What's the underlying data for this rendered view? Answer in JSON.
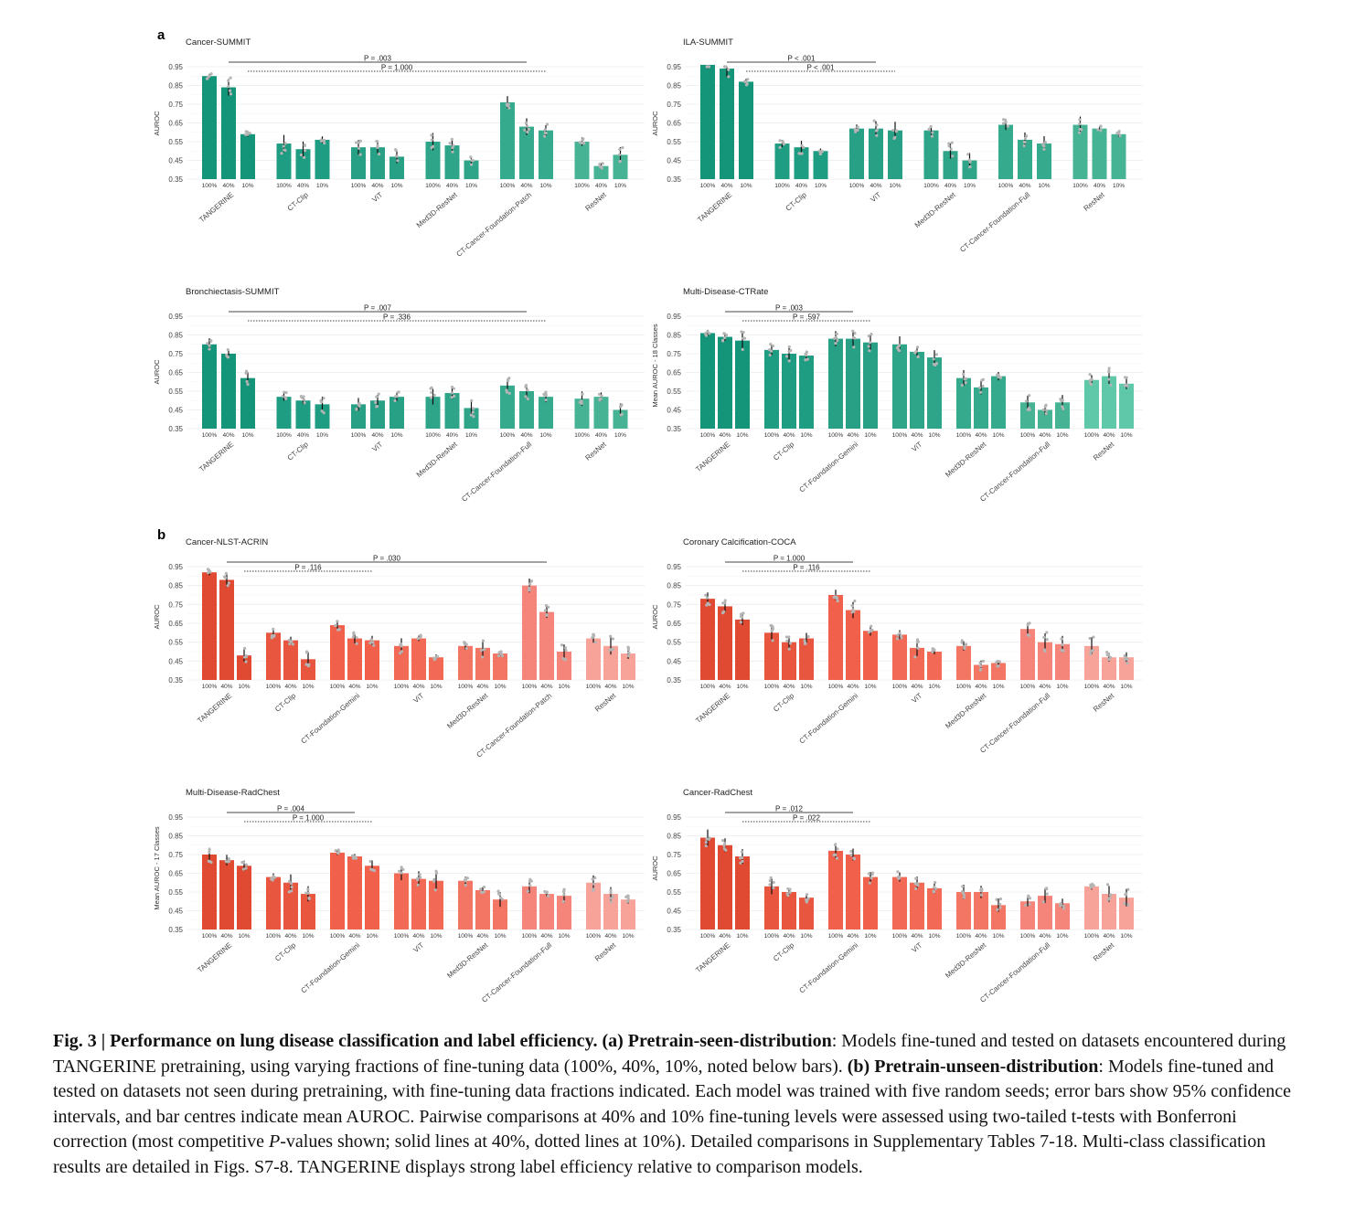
{
  "panel_labels": {
    "a": "a",
    "b": "b"
  },
  "colors": {
    "teal": [
      "#14957a",
      "#1f9d82",
      "#28a085",
      "#2ea489",
      "#35aa8c",
      "#45b394",
      "#5ec8a9"
    ],
    "red": [
      "#e04a33",
      "#e9563f",
      "#f0604b",
      "#f26a56",
      "#f37563",
      "#f5847a",
      "#f7a399"
    ]
  },
  "chart_data": [
    {
      "type": "bar",
      "title": "Cancer-SUMMIT",
      "ylabel": "AUROC",
      "ylim": [
        0.35,
        0.95
      ],
      "yticks": [
        "0.35",
        "0.45",
        "0.55",
        "0.65",
        "0.75",
        "0.85",
        "0.95"
      ],
      "fractions": [
        "100%",
        "40%",
        "10%"
      ],
      "palette": "teal",
      "groups": [
        {
          "model": "TANGERINE",
          "values": [
            0.9,
            0.84,
            0.59
          ]
        },
        {
          "model": "CT-Clip",
          "values": [
            0.54,
            0.51,
            0.56
          ]
        },
        {
          "model": "ViT",
          "values": [
            0.52,
            0.52,
            0.47
          ]
        },
        {
          "model": "Med3D-ResNet",
          "values": [
            0.55,
            0.53,
            0.45
          ]
        },
        {
          "model": "CT-Cancer-Foundation-Patch",
          "values": [
            0.76,
            0.63,
            0.61
          ]
        },
        {
          "model": "ResNet",
          "values": [
            0.55,
            0.42,
            0.48
          ]
        }
      ],
      "comparisons": [
        {
          "label": "P = .003",
          "from": 0,
          "to": 4,
          "style": "solid"
        },
        {
          "label": "P = 1.000",
          "from": 0,
          "to": 4,
          "style": "dotted"
        }
      ]
    },
    {
      "type": "bar",
      "title": "ILA-SUMMIT",
      "ylabel": "AUROC",
      "ylim": [
        0.35,
        0.95
      ],
      "yticks": [
        "0.35",
        "0.45",
        "0.55",
        "0.65",
        "0.75",
        "0.85",
        "0.95"
      ],
      "fractions": [
        "100%",
        "40%",
        "10%"
      ],
      "palette": "teal",
      "groups": [
        {
          "model": "TANGERINE",
          "values": [
            0.96,
            0.94,
            0.87
          ]
        },
        {
          "model": "CT-Clip",
          "values": [
            0.54,
            0.52,
            0.5
          ]
        },
        {
          "model": "ViT",
          "values": [
            0.62,
            0.62,
            0.61
          ]
        },
        {
          "model": "Med3D-ResNet",
          "values": [
            0.61,
            0.5,
            0.45
          ]
        },
        {
          "model": "CT-Cancer-Foundation-Full",
          "values": [
            0.64,
            0.56,
            0.54
          ]
        },
        {
          "model": "ResNet",
          "values": [
            0.64,
            0.62,
            0.59
          ]
        }
      ],
      "comparisons": [
        {
          "label": "P < .001",
          "from": 0,
          "to": 2,
          "style": "solid"
        },
        {
          "label": "P < .001",
          "from": 0,
          "to": 2,
          "style": "dotted"
        }
      ]
    },
    {
      "type": "bar",
      "title": "Bronchiectasis-SUMMIT",
      "ylabel": "AUROC",
      "ylim": [
        0.35,
        0.95
      ],
      "yticks": [
        "0.35",
        "0.45",
        "0.55",
        "0.65",
        "0.75",
        "0.85",
        "0.95"
      ],
      "fractions": [
        "100%",
        "40%",
        "10%"
      ],
      "palette": "teal",
      "groups": [
        {
          "model": "TANGERINE",
          "values": [
            0.8,
            0.75,
            0.62
          ]
        },
        {
          "model": "CT-Clip",
          "values": [
            0.52,
            0.5,
            0.48
          ]
        },
        {
          "model": "ViT",
          "values": [
            0.48,
            0.5,
            0.52
          ]
        },
        {
          "model": "Med3D-ResNet",
          "values": [
            0.52,
            0.54,
            0.46
          ]
        },
        {
          "model": "CT-Cancer-Foundation-Full",
          "values": [
            0.58,
            0.55,
            0.52
          ]
        },
        {
          "model": "ResNet",
          "values": [
            0.51,
            0.52,
            0.45
          ]
        }
      ],
      "comparisons": [
        {
          "label": "P = .007",
          "from": 0,
          "to": 4,
          "style": "solid"
        },
        {
          "label": "P = .336",
          "from": 0,
          "to": 4,
          "style": "dotted"
        }
      ]
    },
    {
      "type": "bar",
      "title": "Multi-Disease-CTRate",
      "ylabel": "Mean AUROC - 18 Classes",
      "ylim": [
        0.35,
        0.95
      ],
      "yticks": [
        "0.35",
        "0.45",
        "0.55",
        "0.65",
        "0.75",
        "0.85",
        "0.95"
      ],
      "fractions": [
        "100%",
        "40%",
        "10%"
      ],
      "palette": "teal",
      "groups": [
        {
          "model": "TANGERINE",
          "values": [
            0.86,
            0.84,
            0.82
          ]
        },
        {
          "model": "CT-Clip",
          "values": [
            0.77,
            0.75,
            0.74
          ]
        },
        {
          "model": "CT-Foundation-Gemini",
          "values": [
            0.83,
            0.83,
            0.81
          ]
        },
        {
          "model": "ViT",
          "values": [
            0.8,
            0.76,
            0.73
          ]
        },
        {
          "model": "Med3D-ResNet",
          "values": [
            0.62,
            0.57,
            0.63
          ]
        },
        {
          "model": "CT-Cancer-Foundation-Full",
          "values": [
            0.49,
            0.45,
            0.49
          ]
        },
        {
          "model": "ResNet",
          "values": [
            0.61,
            0.63,
            0.59
          ]
        }
      ],
      "comparisons": [
        {
          "label": "P = .003",
          "from": 0,
          "to": 2,
          "style": "solid"
        },
        {
          "label": "P = .597",
          "from": 0,
          "to": 2,
          "style": "dotted"
        }
      ]
    },
    {
      "type": "bar",
      "title": "Cancer-NLST-ACRIN",
      "ylabel": "AUROC",
      "ylim": [
        0.35,
        0.95
      ],
      "yticks": [
        "0.35",
        "0.45",
        "0.55",
        "0.65",
        "0.75",
        "0.85",
        "0.95"
      ],
      "fractions": [
        "100%",
        "40%",
        "10%"
      ],
      "palette": "red",
      "groups": [
        {
          "model": "TANGERINE",
          "values": [
            0.92,
            0.88,
            0.48
          ]
        },
        {
          "model": "CT-Clip",
          "values": [
            0.6,
            0.56,
            0.46
          ]
        },
        {
          "model": "CT-Foundation-Gemini",
          "values": [
            0.64,
            0.57,
            0.56
          ]
        },
        {
          "model": "ViT",
          "values": [
            0.53,
            0.57,
            0.47
          ]
        },
        {
          "model": "Med3D-ResNet",
          "values": [
            0.53,
            0.52,
            0.49
          ]
        },
        {
          "model": "CT-Cancer-Foundation-Patch",
          "values": [
            0.85,
            0.71,
            0.5
          ]
        },
        {
          "model": "ResNet",
          "values": [
            0.57,
            0.53,
            0.49
          ]
        }
      ],
      "comparisons": [
        {
          "label": "P = .030",
          "from": 0,
          "to": 5,
          "style": "solid"
        },
        {
          "label": "P = .116",
          "from": 0,
          "to": 2,
          "style": "dotted"
        }
      ]
    },
    {
      "type": "bar",
      "title": "Coronary Calcification-COCA",
      "ylabel": "AUROC",
      "ylim": [
        0.35,
        0.95
      ],
      "yticks": [
        "0.35",
        "0.45",
        "0.55",
        "0.65",
        "0.75",
        "0.85",
        "0.95"
      ],
      "fractions": [
        "100%",
        "40%",
        "10%"
      ],
      "palette": "red",
      "groups": [
        {
          "model": "TANGERINE",
          "values": [
            0.78,
            0.74,
            0.67
          ]
        },
        {
          "model": "CT-Clip",
          "values": [
            0.6,
            0.55,
            0.57
          ]
        },
        {
          "model": "CT-Foundation-Gemini",
          "values": [
            0.8,
            0.72,
            0.61
          ]
        },
        {
          "model": "ViT",
          "values": [
            0.59,
            0.52,
            0.5
          ]
        },
        {
          "model": "Med3D-ResNet",
          "values": [
            0.53,
            0.43,
            0.44
          ]
        },
        {
          "model": "CT-Cancer-Foundation-Full",
          "values": [
            0.62,
            0.55,
            0.54
          ]
        },
        {
          "model": "ResNet",
          "values": [
            0.53,
            0.47,
            0.47
          ]
        }
      ],
      "comparisons": [
        {
          "label": "P = 1.000",
          "from": 0,
          "to": 2,
          "style": "solid"
        },
        {
          "label": "P = .116",
          "from": 0,
          "to": 2,
          "style": "dotted"
        }
      ]
    },
    {
      "type": "bar",
      "title": "Multi-Disease-RadChest",
      "ylabel": "Mean AUROC - 17 Classes",
      "ylim": [
        0.35,
        0.95
      ],
      "yticks": [
        "0.35",
        "0.45",
        "0.55",
        "0.65",
        "0.75",
        "0.85",
        "0.95"
      ],
      "fractions": [
        "100%",
        "40%",
        "10%"
      ],
      "palette": "red",
      "groups": [
        {
          "model": "TANGERINE",
          "values": [
            0.75,
            0.72,
            0.69
          ]
        },
        {
          "model": "CT-Clip",
          "values": [
            0.63,
            0.6,
            0.54
          ]
        },
        {
          "model": "CT-Foundation-Gemini",
          "values": [
            0.76,
            0.74,
            0.69
          ]
        },
        {
          "model": "ViT",
          "values": [
            0.65,
            0.62,
            0.61
          ]
        },
        {
          "model": "Med3D-ResNet",
          "values": [
            0.61,
            0.56,
            0.51
          ]
        },
        {
          "model": "CT-Cancer-Foundation-Full",
          "values": [
            0.58,
            0.54,
            0.53
          ]
        },
        {
          "model": "ResNet",
          "values": [
            0.6,
            0.54,
            0.51
          ]
        }
      ],
      "comparisons": [
        {
          "label": "P = .004",
          "from": 0,
          "to": 2,
          "style": "solid"
        },
        {
          "label": "P = 1.000",
          "from": 0,
          "to": 2,
          "style": "dotted"
        }
      ]
    },
    {
      "type": "bar",
      "title": "Cancer-RadChest",
      "ylabel": "AUROC",
      "ylim": [
        0.35,
        0.95
      ],
      "yticks": [
        "0.35",
        "0.45",
        "0.55",
        "0.65",
        "0.75",
        "0.85",
        "0.95"
      ],
      "fractions": [
        "100%",
        "40%",
        "10%"
      ],
      "palette": "red",
      "groups": [
        {
          "model": "TANGERINE",
          "values": [
            0.84,
            0.8,
            0.74
          ]
        },
        {
          "model": "CT-Clip",
          "values": [
            0.58,
            0.55,
            0.52
          ]
        },
        {
          "model": "CT-Foundation-Gemini",
          "values": [
            0.77,
            0.75,
            0.63
          ]
        },
        {
          "model": "ViT",
          "values": [
            0.63,
            0.6,
            0.57
          ]
        },
        {
          "model": "Med3D-ResNet",
          "values": [
            0.55,
            0.55,
            0.48
          ]
        },
        {
          "model": "CT-Cancer-Foundation-Full",
          "values": [
            0.5,
            0.53,
            0.49
          ]
        },
        {
          "model": "ResNet",
          "values": [
            0.58,
            0.54,
            0.52
          ]
        }
      ],
      "comparisons": [
        {
          "label": "P = .012",
          "from": 0,
          "to": 2,
          "style": "solid"
        },
        {
          "label": "P = .022",
          "from": 0,
          "to": 2,
          "style": "dotted"
        }
      ]
    }
  ],
  "caption": {
    "fig": "Fig. 3 | Performance on lung disease classification and label efficiency.",
    "a_label": "(a) Pretrain-seen-distribution",
    "a_text": ": Models fine-tuned and tested on datasets encountered during TANGERINE pretraining, using varying fractions of fine-tuning data (100%, 40%, 10%, noted below bars).",
    "b_label": "(b) Pretrain-unseen-distribution",
    "b_text": ": Models fine-tuned and tested on datasets not seen during pretraining, with fine-tuning data fractions indicated. Each model was trained with five random seeds; error bars show 95% confidence intervals, and bar centres indicate mean AUROC. Pairwise comparisons at 40% and 10% fine-tuning levels were assessed using two-tailed t-tests with Bonferroni correction (most competitive",
    "p_italic": "P",
    "b_text2": "-values shown; solid lines at 40%, dotted lines at 10%). Detailed comparisons in Supplementary Tables 7-18. Multi-class classification results are detailed in Figs. S7-8. TANGERINE displays strong label efficiency relative to comparison models."
  }
}
